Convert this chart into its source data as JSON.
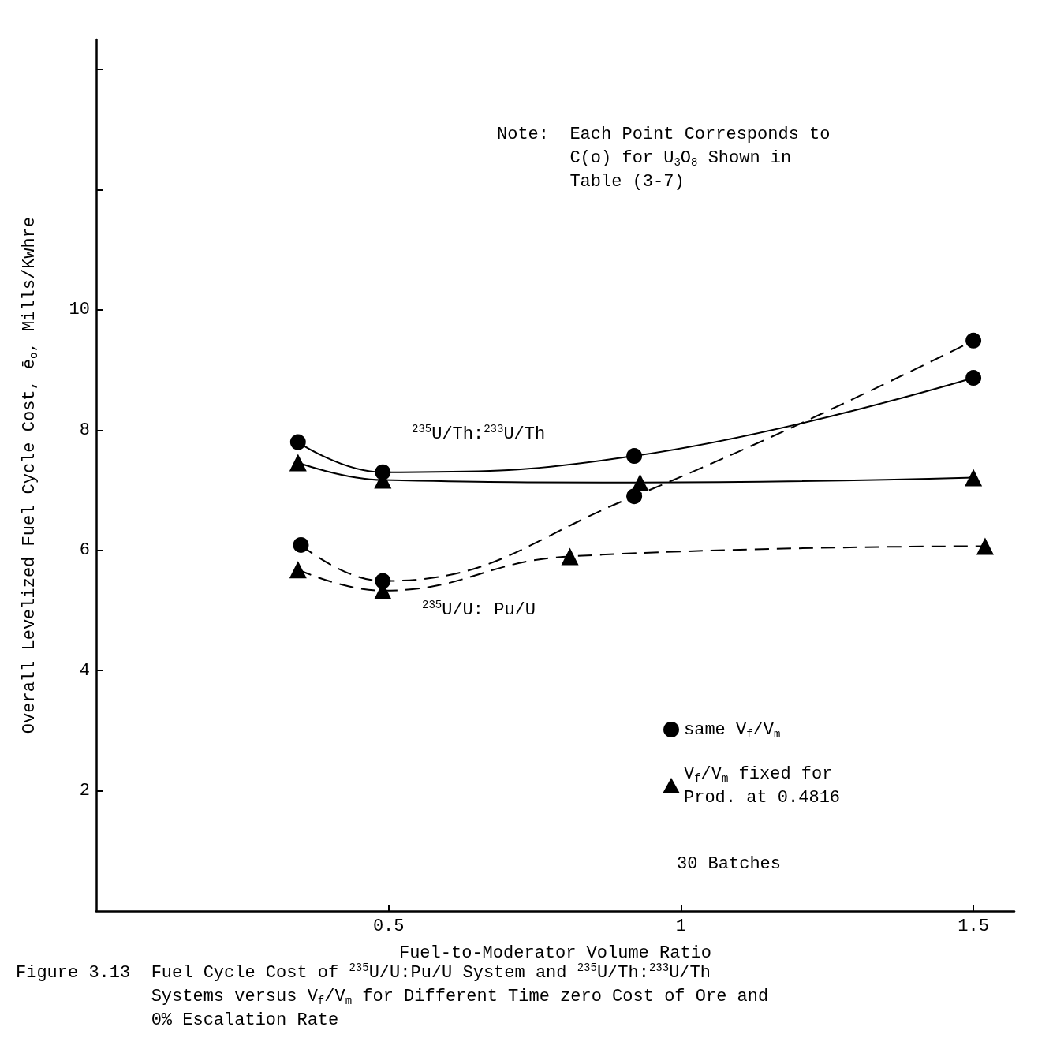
{
  "chart_data": {
    "type": "line",
    "xlabel": "Fuel-to-Moderator Volume Ratio",
    "ylabel": "Overall Levelized Fuel Cycle Cost, ē$_{o}$, Mills/Kwhre",
    "xlim": [
      0,
      1.57
    ],
    "xticks": [
      0.5,
      1,
      1.5
    ],
    "ylim": [
      0,
      14.5
    ],
    "yticks": [
      2,
      4,
      6,
      8,
      10,
      {
        "value": 12,
        "label": null
      },
      {
        "value": 14,
        "label": null
      }
    ],
    "grid": false,
    "legend": "bottom right",
    "series": [
      {
        "name": "same V$_{f}$/V$_{m}$",
        "color": "#000000",
        "marker": "circle",
        "line_style": "solid",
        "x": [
          0.345,
          0.49,
          0.92,
          1.5
        ],
        "values": [
          7.8,
          7.3,
          7.57,
          8.87
        ]
      },
      {
        "name": "V$_{f}$/V$_{m}$ fixed for\nProd. at 0.4816",
        "color": "#000000",
        "marker": "triangle",
        "line_style": "solid",
        "x": [
          0.345,
          0.49,
          0.93,
          1.5
        ],
        "values": [
          7.46,
          7.17,
          7.13,
          7.21
        ]
      },
      {
        "color": "#000000",
        "marker": "circle",
        "line_style": "dashed",
        "x": [
          0.35,
          0.49,
          0.92,
          1.5
        ],
        "values": [
          6.09,
          5.49,
          6.9,
          9.49
        ]
      },
      {
        "color": "#000000",
        "marker": "triangle",
        "line_style": "dashed",
        "x": [
          0.345,
          0.49,
          0.81,
          1.52
        ],
        "values": [
          5.68,
          5.33,
          5.9,
          6.07
        ]
      }
    ],
    "annotations": [
      "Note:  Each Point Corresponds to\n       C(o) for U$_{3}$O$_{8}$ Shown in\n       Table (3-7)",
      "30 Batches",
      "Figure 3.13  Fuel Cycle Cost of $^{235}$U/U:Pu/U System and $^{235}$U/Th:$^{233}$U/Th\n             Systems versus V$_{f}$/V$_{m}$ for Different Time zero Cost of Ore and\n             0% Escalation Rate",
      "$^{235}$U/Th:$^{233}$U/Th",
      "$^{235}$U/U: Pu/U"
    ]
  }
}
